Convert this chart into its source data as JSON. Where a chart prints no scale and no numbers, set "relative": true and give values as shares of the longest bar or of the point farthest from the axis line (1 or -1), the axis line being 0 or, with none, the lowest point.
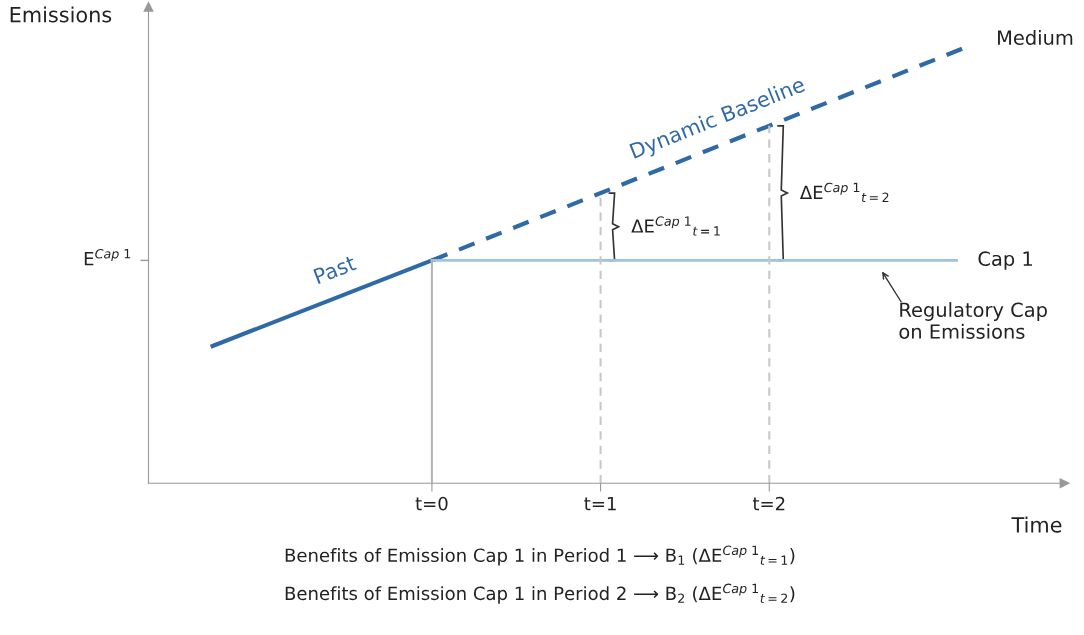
{
  "chart_data": {
    "type": "line",
    "relative": true,
    "xlabel": "Time",
    "ylabel": "Emissions",
    "xlim": [
      -1.68,
      3.75
    ],
    "xticks": [
      {
        "value": 0,
        "label": "t=0"
      },
      {
        "value": 1,
        "label": "t=1"
      },
      {
        "value": 2,
        "label": "t=2"
      }
    ],
    "series": [
      {
        "name": "Past",
        "color": "#2f6aa6",
        "x": [
          -1.3,
          0
        ],
        "values": [
          0.314,
          0.51
        ],
        "line_style": "solid"
      },
      {
        "name": "Dynamic Baseline",
        "color": "#2f6aa6",
        "x": [
          0,
          3.18
        ],
        "values": [
          0.51,
          1.0
        ],
        "line_style": "dashed"
      },
      {
        "name": "Cap 1",
        "color": "#9dc3e2",
        "x": [
          0,
          3.11
        ],
        "values": [
          0.51,
          0.51
        ],
        "line_style": "solid"
      },
      {
        "color": "#b5b5b5",
        "x": [
          0,
          0
        ],
        "values": [
          0,
          0.51
        ],
        "line_style": "solid"
      },
      {
        "color": "#c8c8c8",
        "x": [
          1,
          1
        ],
        "values": [
          0,
          0.664
        ],
        "line_style": "dashed"
      },
      {
        "color": "#c8c8c8",
        "x": [
          2,
          2
        ],
        "values": [
          0,
          0.818
        ],
        "line_style": "dashed"
      }
    ],
    "annotations": [
      {
        "text": "Medium",
        "x": 3.18,
        "y": 1.0
      },
      {
        "text": "ΔE$^{Cap 1}$$_{t=1}$",
        "x": 1,
        "y": 0.587
      },
      {
        "text": "ΔE$^{Cap 1}$$_{t=2}$",
        "x": 2,
        "y": 0.664
      },
      {
        "text": "Regulatory Cap\non Emissions",
        "x": 2.65,
        "y": 0.51
      },
      "Benefits of Emission Cap 1 in Period 1 ⟶ B$_{1}$ (ΔE$^{Cap 1}$$_{t=1}$)",
      "Benefits of Emission Cap 1 in Period 2 ⟶ B$_{2}$ (ΔE$^{Cap 1}$$_{t=2}$)"
    ],
    "ref_lines": [
      {
        "axis": "y",
        "value": 0.51,
        "label": "E$^{Cap 1}$"
      }
    ],
    "legend": false,
    "grid": false,
    "marker": "none"
  }
}
